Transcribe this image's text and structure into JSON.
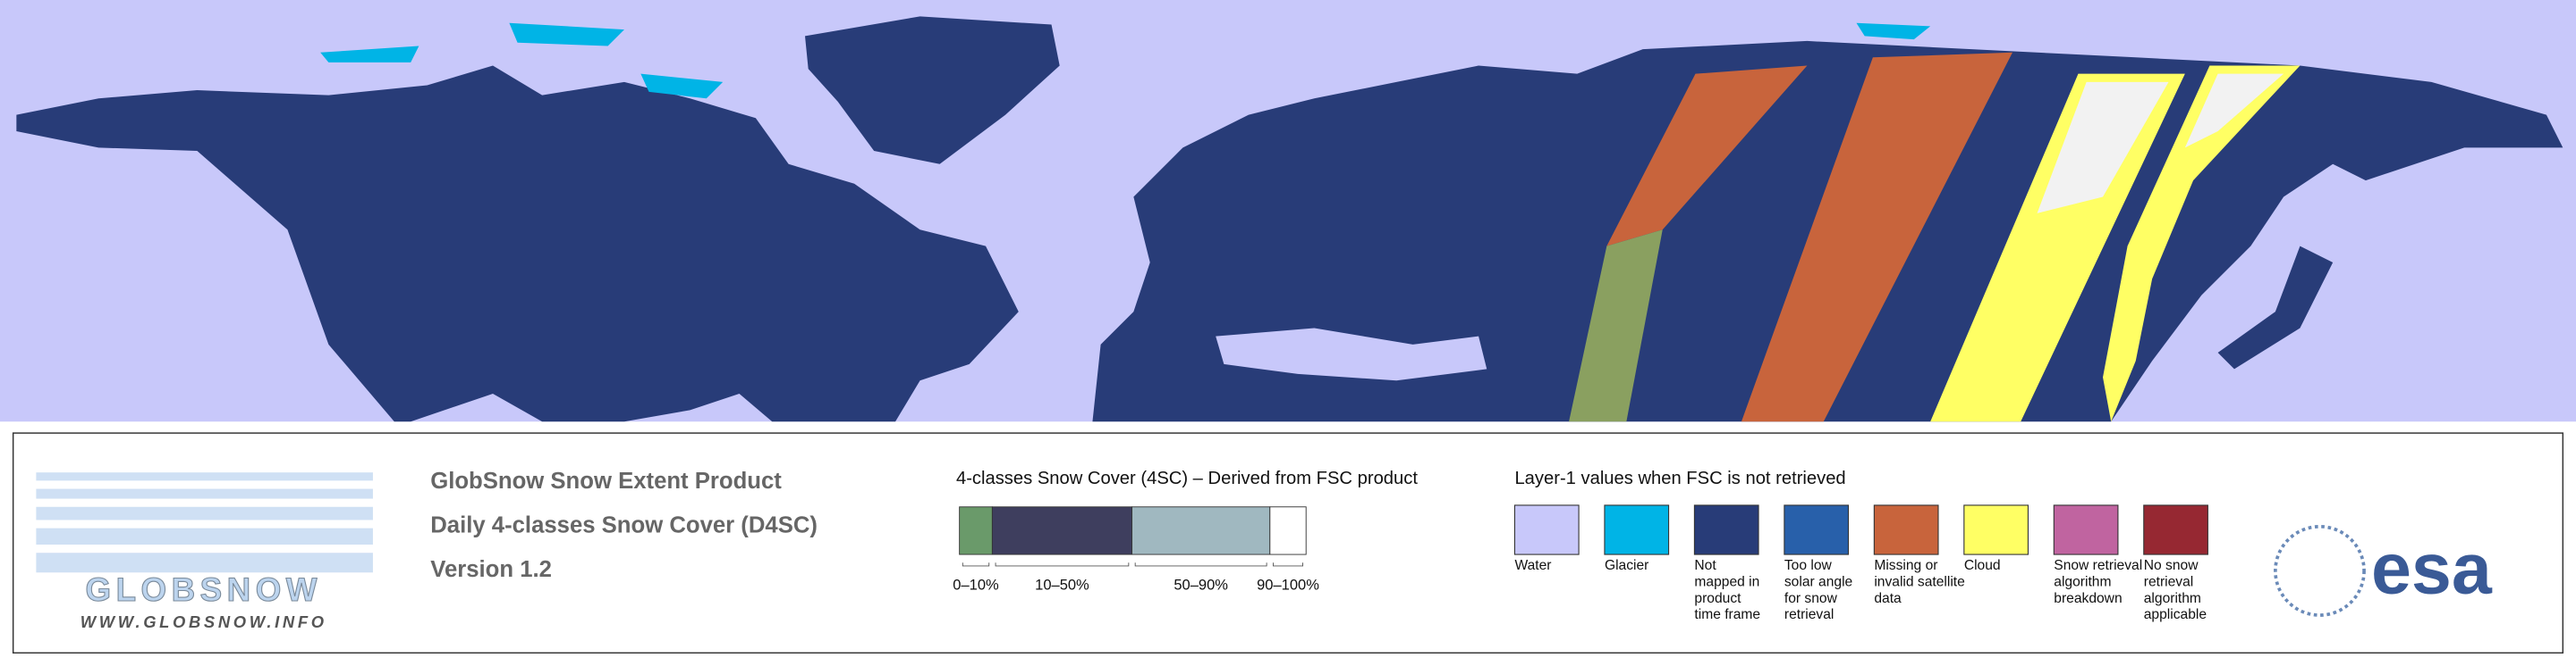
{
  "logo": {
    "name": "GLOBSNOW",
    "url": "WWW.GLOBSNOW.INFO"
  },
  "product": {
    "lines": [
      "GlobSnow Snow Extent Product",
      "Daily 4-classes Snow Cover (D4SC)",
      "Version 1.2"
    ]
  },
  "scale": {
    "title": "4-classes Snow Cover (4SC) – Derived from FSC product",
    "classes": [
      {
        "label": "0–10%",
        "color": "#6a9a6a"
      },
      {
        "label": "10–50%",
        "color": "#3e3e5e"
      },
      {
        "label": "50–90%",
        "color": "#a0b8c0"
      },
      {
        "label": "90–100%",
        "color": "#ffffff"
      }
    ]
  },
  "layer1": {
    "title": "Layer-1 values when FSC is not retrieved",
    "items": [
      {
        "lines": [
          "Water"
        ],
        "color": "#c8c8fa"
      },
      {
        "lines": [
          "Glacier"
        ],
        "color": "#00b4e6"
      },
      {
        "lines": [
          "Not",
          "mapped in",
          "product",
          "time frame"
        ],
        "color": "#283c78"
      },
      {
        "lines": [
          "Too low",
          "solar angle",
          "for snow",
          "retrieval"
        ],
        "color": "#2860aa"
      },
      {
        "lines": [
          "Missing or",
          "invalid satellite",
          "data"
        ],
        "color": "#c8643c"
      },
      {
        "lines": [
          "Cloud"
        ],
        "color": "#ffff64"
      },
      {
        "lines": [
          "Snow retrieval",
          "algorithm",
          "breakdown"
        ],
        "color": "#c064a0"
      },
      {
        "lines": [
          "No snow",
          "retrieval",
          "algorithm",
          "applicable"
        ],
        "color": "#962832"
      }
    ]
  },
  "agency": "esa"
}
